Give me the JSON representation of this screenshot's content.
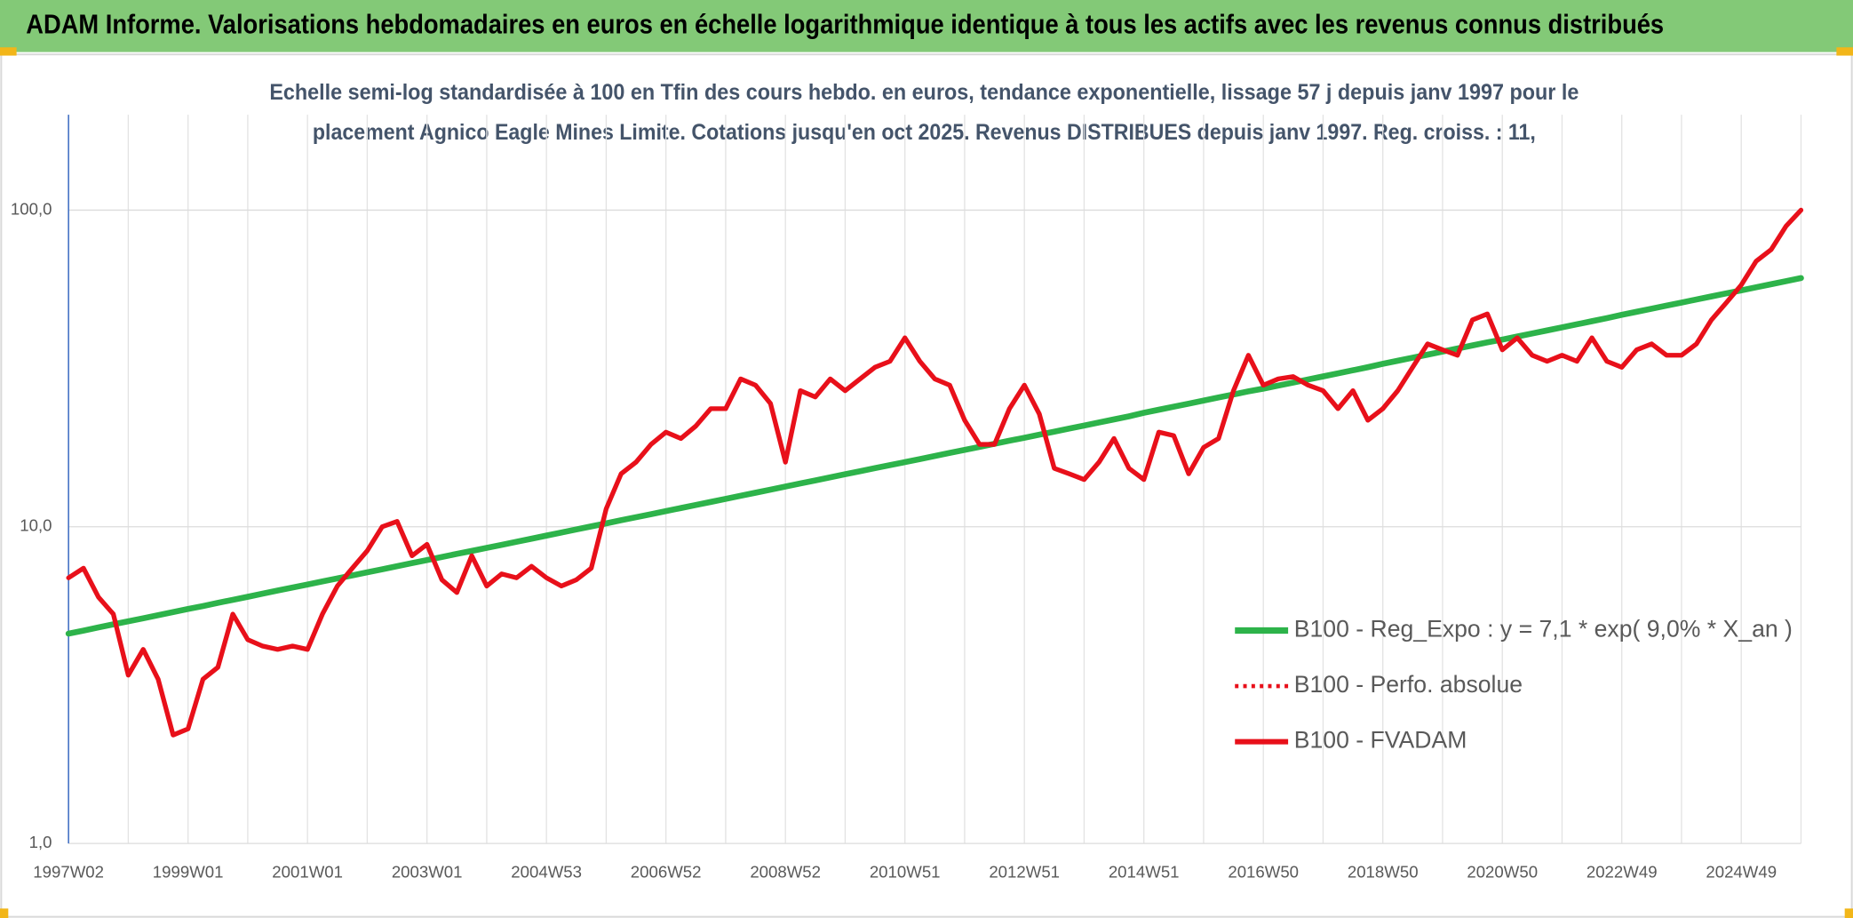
{
  "chart_data": {
    "type": "line",
    "title": "ADAM Informe. Valorisations hebdomadaires en euros en échelle logarithmique identique à tous les actifs avec les revenus connus distribués",
    "subtitle": [
      "Echelle semi-log standardisée à 100 en Tfin des cours hebdo. en euros, tendance exponentielle, lissage 57 j depuis janv 1997 pour le",
      "placement Agnico Eagle Mines Limite. Cotations jusqu'en oct 2025. Revenus DISTRIBUES depuis janv 1997. Reg. croiss. : 11,"
    ],
    "categories": [
      "1997W02",
      null,
      null,
      null,
      null,
      null,
      null,
      null,
      "1999W01",
      null,
      null,
      null,
      null,
      null,
      null,
      null,
      "2001W01",
      null,
      null,
      null,
      null,
      null,
      null,
      null,
      "2003W01",
      null,
      null,
      null,
      null,
      null,
      null,
      null,
      "2004W53",
      null,
      null,
      null,
      null,
      null,
      null,
      null,
      "2006W52",
      null,
      null,
      null,
      null,
      null,
      null,
      null,
      "2008W52",
      null,
      null,
      null,
      null,
      null,
      null,
      null,
      "2010W51",
      null,
      null,
      null,
      null,
      null,
      null,
      null,
      "2012W51",
      null,
      null,
      null,
      null,
      null,
      null,
      null,
      "2014W51",
      null,
      null,
      null,
      null,
      null,
      null,
      null,
      "2016W50",
      null,
      null,
      null,
      null,
      null,
      null,
      null,
      "2018W50",
      null,
      null,
      null,
      null,
      null,
      null,
      null,
      "2020W50",
      null,
      null,
      null,
      null,
      null,
      null,
      null,
      "2022W49",
      null,
      null,
      null,
      null,
      null,
      null,
      null,
      "2024W49",
      null,
      null,
      null,
      null
    ],
    "series": [
      {
        "name": "B100 - Reg_Expo : y = 7,1 * exp( 9,0% *  X_an )",
        "color": "#2db34a",
        "width": 5,
        "dash": false,
        "values": [
          4.6,
          4.7,
          4.81,
          4.92,
          5.03,
          5.14,
          5.26,
          5.38,
          5.5,
          5.62,
          5.75,
          5.88,
          6.01,
          6.15,
          6.29,
          6.43,
          6.57,
          6.72,
          6.87,
          7.02,
          7.18,
          7.34,
          7.51,
          7.68,
          7.85,
          8.03,
          8.21,
          8.39,
          8.58,
          8.77,
          8.97,
          9.17,
          9.38,
          9.59,
          9.81,
          10.03,
          10.25,
          10.49,
          10.72,
          10.96,
          11.21,
          11.46,
          11.72,
          11.98,
          12.25,
          12.53,
          12.81,
          13.1,
          13.4,
          13.7,
          14.01,
          14.33,
          14.65,
          14.98,
          15.32,
          15.66,
          16.0,
          16.36,
          16.73,
          17.11,
          17.49,
          17.88,
          18.29,
          18.7,
          19.1,
          19.53,
          19.97,
          20.42,
          20.88,
          21.35,
          21.83,
          22.32,
          22.9,
          23.42,
          23.94,
          24.48,
          25.03,
          25.6,
          26.17,
          26.76,
          27.3,
          27.91,
          28.54,
          29.19,
          29.84,
          30.52,
          31.2,
          31.91,
          32.7,
          33.44,
          34.19,
          34.96,
          35.75,
          36.55,
          37.38,
          38.22,
          39.0,
          39.88,
          40.78,
          41.69,
          42.63,
          43.59,
          44.58,
          45.58,
          46.7,
          47.75,
          48.83,
          49.93,
          51.05,
          52.2,
          53.38,
          54.58,
          55.8,
          57.06,
          58.34,
          59.66,
          61.0
        ]
      },
      {
        "name": "B100 - Perfo. absolue",
        "color": "#e8101a",
        "width": 3,
        "dash": true,
        "values": [
          6.9,
          7.4,
          6.0,
          5.3,
          3.4,
          4.1,
          3.3,
          2.2,
          2.3,
          3.3,
          3.6,
          5.3,
          4.4,
          4.2,
          4.1,
          4.2,
          4.1,
          5.3,
          6.5,
          7.4,
          8.4,
          10,
          10.4,
          8.1,
          8.8,
          6.8,
          6.2,
          8.1,
          6.5,
          7.1,
          6.9,
          7.5,
          6.9,
          6.5,
          6.8,
          7.4,
          11.4,
          14.7,
          16,
          18.2,
          19.9,
          19,
          20.8,
          23.6,
          23.6,
          29.3,
          28,
          24.5,
          16,
          26.9,
          25.7,
          29.3,
          26.9,
          29.3,
          31.9,
          33.3,
          39.5,
          33.3,
          29.3,
          28,
          21.7,
          18.2,
          18.2,
          23.6,
          28,
          22.7,
          15.3,
          14.7,
          14.1,
          16,
          19,
          15.3,
          14.1,
          19.9,
          19.4,
          14.7,
          17.8,
          19,
          26.9,
          34.8,
          28,
          29.3,
          29.8,
          28,
          26.9,
          23.6,
          26.9,
          21.7,
          23.6,
          26.9,
          31.9,
          37.8,
          36.2,
          34.8,
          45,
          47,
          36.2,
          39.5,
          34.8,
          33.3,
          34.8,
          33.3,
          39.5,
          33.3,
          31.9,
          36.2,
          37.8,
          34.8,
          34.8,
          37.8,
          45,
          51,
          58,
          69,
          75,
          89,
          100
        ]
      },
      {
        "name": "B100 - FVADAM",
        "color": "#e8101a",
        "width": 4,
        "dash": false,
        "values": [
          6.9,
          7.4,
          6.0,
          5.3,
          3.4,
          4.1,
          3.3,
          2.2,
          2.3,
          3.3,
          3.6,
          5.3,
          4.4,
          4.2,
          4.1,
          4.2,
          4.1,
          5.3,
          6.5,
          7.4,
          8.4,
          10,
          10.4,
          8.1,
          8.8,
          6.8,
          6.2,
          8.1,
          6.5,
          7.1,
          6.9,
          7.5,
          6.9,
          6.5,
          6.8,
          7.4,
          11.4,
          14.7,
          16,
          18.2,
          19.9,
          19,
          20.8,
          23.6,
          23.6,
          29.3,
          28,
          24.5,
          16,
          26.9,
          25.7,
          29.3,
          26.9,
          29.3,
          31.9,
          33.3,
          39.5,
          33.3,
          29.3,
          28,
          21.7,
          18.2,
          18.2,
          23.6,
          28,
          22.7,
          15.3,
          14.7,
          14.1,
          16,
          19,
          15.3,
          14.1,
          19.9,
          19.4,
          14.7,
          17.8,
          19,
          26.9,
          34.8,
          28,
          29.3,
          29.8,
          28,
          26.9,
          23.6,
          26.9,
          21.7,
          23.6,
          26.9,
          31.9,
          37.8,
          36.2,
          34.8,
          45,
          47,
          36.2,
          39.5,
          34.8,
          33.3,
          34.8,
          33.3,
          39.5,
          33.3,
          31.9,
          36.2,
          37.8,
          34.8,
          34.8,
          37.8,
          45,
          51,
          58,
          69,
          75,
          89,
          100
        ]
      }
    ],
    "ylim": [
      1,
      200
    ],
    "yticks": [
      {
        "value": 1,
        "label": "1,0"
      },
      {
        "value": 10,
        "label": "10,0"
      },
      {
        "value": 100,
        "label": "100,0"
      }
    ],
    "log_scale": true,
    "grid": true,
    "legend": "right"
  }
}
